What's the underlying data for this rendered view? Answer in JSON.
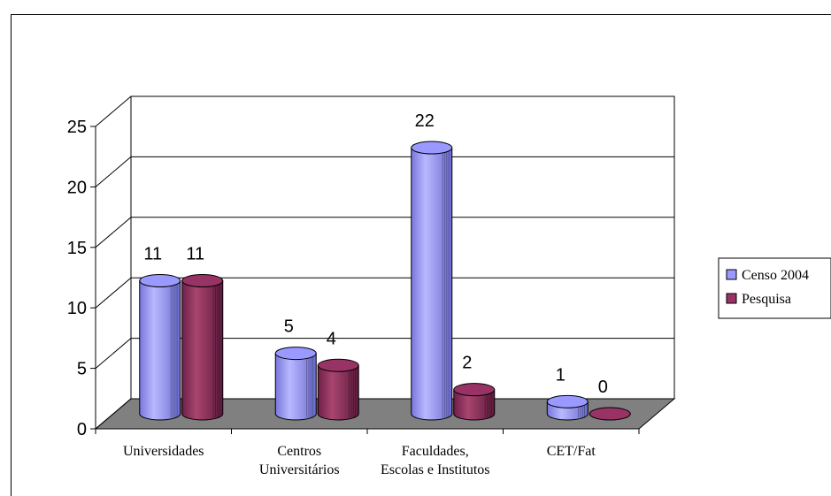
{
  "chart_data": {
    "type": "bar",
    "categories": [
      [
        "Universidades"
      ],
      [
        "Centros",
        "Universitários"
      ],
      [
        "Faculdades,",
        "Escolas e Institutos"
      ],
      [
        "CET/Fat"
      ]
    ],
    "series": [
      {
        "name": "Censo 2004",
        "values": [
          11,
          5,
          22,
          1
        ],
        "color": "#9999ff"
      },
      {
        "name": "Pesquisa",
        "values": [
          11,
          4,
          2,
          0
        ],
        "color": "#993366"
      }
    ],
    "data_labels": [
      [
        "11",
        "5",
        "22",
        "1"
      ],
      [
        "11",
        "4",
        "2",
        "0"
      ]
    ],
    "y_ticks": [
      "0",
      "5",
      "10",
      "15",
      "20",
      "25"
    ],
    "ylim": [
      0,
      25
    ],
    "grid": true,
    "legend": "right",
    "floor_color": "#808080",
    "style": "3d-cylinder"
  }
}
